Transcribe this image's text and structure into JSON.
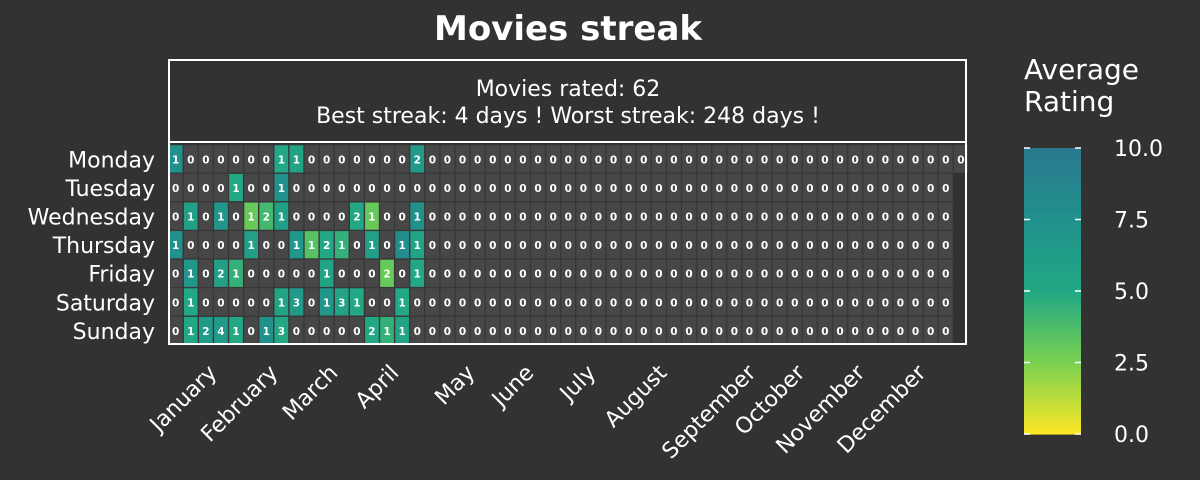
{
  "chart_data": {
    "type": "heatmap",
    "title": "Movies streak",
    "subtitle_lines": [
      "Movies rated: 62",
      "Best streak: 4 days ! Worst streak: 248 days !"
    ],
    "rows": [
      "Monday",
      "Tuesday",
      "Wednesday",
      "Thursday",
      "Friday",
      "Saturday",
      "Sunday"
    ],
    "x_tick_labels": [
      "January",
      "February",
      "March",
      "April",
      "May",
      "June",
      "July",
      "August",
      "September",
      "October",
      "November",
      "December"
    ],
    "weeks_per_row": [
      53,
      52,
      52,
      52,
      52,
      52,
      52
    ],
    "counts": [
      [
        1,
        0,
        0,
        0,
        0,
        0,
        0,
        1,
        1,
        0,
        0,
        0,
        0,
        0,
        0,
        0,
        2,
        0,
        0,
        0,
        0,
        0,
        0,
        0,
        0,
        0,
        0,
        0,
        0,
        0,
        0,
        0,
        0,
        0,
        0,
        0,
        0,
        0,
        0,
        0,
        0,
        0,
        0,
        0,
        0,
        0,
        0,
        0,
        0,
        0,
        0,
        0,
        0
      ],
      [
        0,
        0,
        0,
        0,
        1,
        0,
        0,
        1,
        0,
        0,
        0,
        0,
        0,
        0,
        0,
        0,
        0,
        0,
        0,
        0,
        0,
        0,
        0,
        0,
        0,
        0,
        0,
        0,
        0,
        0,
        0,
        0,
        0,
        0,
        0,
        0,
        0,
        0,
        0,
        0,
        0,
        0,
        0,
        0,
        0,
        0,
        0,
        0,
        0,
        0,
        0,
        0
      ],
      [
        0,
        1,
        0,
        1,
        0,
        1,
        2,
        1,
        0,
        0,
        0,
        0,
        2,
        1,
        0,
        0,
        1,
        0,
        0,
        0,
        0,
        0,
        0,
        0,
        0,
        0,
        0,
        0,
        0,
        0,
        0,
        0,
        0,
        0,
        0,
        0,
        0,
        0,
        0,
        0,
        0,
        0,
        0,
        0,
        0,
        0,
        0,
        0,
        0,
        0,
        0,
        0
      ],
      [
        1,
        0,
        0,
        0,
        0,
        1,
        0,
        0,
        1,
        1,
        2,
        1,
        0,
        1,
        0,
        1,
        1,
        0,
        0,
        0,
        0,
        0,
        0,
        0,
        0,
        0,
        0,
        0,
        0,
        0,
        0,
        0,
        0,
        0,
        0,
        0,
        0,
        0,
        0,
        0,
        0,
        0,
        0,
        0,
        0,
        0,
        0,
        0,
        0,
        0,
        0,
        0
      ],
      [
        0,
        1,
        0,
        2,
        1,
        0,
        0,
        0,
        0,
        0,
        1,
        0,
        0,
        0,
        2,
        0,
        1,
        0,
        0,
        0,
        0,
        0,
        0,
        0,
        0,
        0,
        0,
        0,
        0,
        0,
        0,
        0,
        0,
        0,
        0,
        0,
        0,
        0,
        0,
        0,
        0,
        0,
        0,
        0,
        0,
        0,
        0,
        0,
        0,
        0,
        0,
        0
      ],
      [
        0,
        1,
        0,
        0,
        0,
        0,
        0,
        1,
        3,
        0,
        1,
        3,
        1,
        0,
        0,
        1,
        0,
        0,
        0,
        0,
        0,
        0,
        0,
        0,
        0,
        0,
        0,
        0,
        0,
        0,
        0,
        0,
        0,
        0,
        0,
        0,
        0,
        0,
        0,
        0,
        0,
        0,
        0,
        0,
        0,
        0,
        0,
        0,
        0,
        0,
        0,
        0
      ],
      [
        0,
        1,
        2,
        4,
        1,
        0,
        1,
        3,
        0,
        0,
        0,
        0,
        0,
        2,
        1,
        1,
        0,
        0,
        0,
        0,
        0,
        0,
        0,
        0,
        0,
        0,
        0,
        0,
        0,
        0,
        0,
        0,
        0,
        0,
        0,
        0,
        0,
        0,
        0,
        0,
        0,
        0,
        0,
        0,
        0,
        0,
        0,
        0,
        0,
        0,
        0,
        0
      ]
    ],
    "ratings": [
      [
        7.5,
        null,
        null,
        null,
        null,
        null,
        null,
        5.0,
        5.5,
        null,
        null,
        null,
        null,
        null,
        null,
        null,
        6.5,
        null,
        null,
        null,
        null,
        null,
        null,
        null,
        null,
        null,
        null,
        null,
        null,
        null,
        null,
        null,
        null,
        null,
        null,
        null,
        null,
        null,
        null,
        null,
        null,
        null,
        null,
        null,
        null,
        null,
        null,
        null,
        null,
        null,
        null,
        null,
        null
      ],
      [
        null,
        null,
        null,
        null,
        5.0,
        null,
        null,
        7.5,
        null,
        null,
        null,
        null,
        null,
        null,
        null,
        null,
        null,
        null,
        null,
        null,
        null,
        null,
        null,
        null,
        null,
        null,
        null,
        null,
        null,
        null,
        null,
        null,
        null,
        null,
        null,
        null,
        null,
        null,
        null,
        null,
        null,
        null,
        null,
        null,
        null,
        null,
        null,
        null,
        null,
        null,
        null,
        null
      ],
      [
        null,
        6.0,
        null,
        7.0,
        null,
        3.0,
        4.0,
        6.0,
        null,
        null,
        null,
        null,
        5.0,
        3.0,
        null,
        null,
        7.5,
        null,
        null,
        null,
        null,
        null,
        null,
        null,
        null,
        null,
        null,
        null,
        null,
        null,
        null,
        null,
        null,
        null,
        null,
        null,
        null,
        null,
        null,
        null,
        null,
        null,
        null,
        null,
        null,
        null,
        null,
        null,
        null,
        null,
        null,
        null
      ],
      [
        7.5,
        null,
        null,
        null,
        null,
        6.0,
        null,
        null,
        7.0,
        3.5,
        5.0,
        4.5,
        null,
        6.0,
        null,
        8.0,
        5.5,
        null,
        null,
        null,
        null,
        null,
        null,
        null,
        null,
        null,
        null,
        null,
        null,
        null,
        null,
        null,
        null,
        null,
        null,
        null,
        null,
        null,
        null,
        null,
        null,
        null,
        null,
        null,
        null,
        null,
        null,
        null,
        null,
        null,
        null,
        null
      ],
      [
        null,
        7.0,
        null,
        6.0,
        4.5,
        null,
        null,
        null,
        null,
        null,
        5.5,
        null,
        null,
        null,
        3.0,
        null,
        5.0,
        null,
        null,
        null,
        null,
        null,
        null,
        null,
        null,
        null,
        null,
        null,
        null,
        null,
        null,
        null,
        null,
        null,
        null,
        null,
        null,
        null,
        null,
        null,
        null,
        null,
        null,
        null,
        null,
        null,
        null,
        null,
        null,
        null,
        null,
        null
      ],
      [
        null,
        5.0,
        null,
        null,
        null,
        null,
        null,
        5.5,
        6.5,
        null,
        7.0,
        5.5,
        5.0,
        null,
        null,
        5.0,
        null,
        null,
        null,
        null,
        null,
        null,
        null,
        null,
        null,
        null,
        null,
        null,
        null,
        null,
        null,
        null,
        null,
        null,
        null,
        null,
        null,
        null,
        null,
        null,
        null,
        null,
        null,
        null,
        null,
        null,
        null,
        null,
        null,
        null,
        null,
        null
      ],
      [
        null,
        5.0,
        6.5,
        6.5,
        5.0,
        null,
        7.5,
        5.0,
        null,
        null,
        null,
        null,
        null,
        5.0,
        4.5,
        5.5,
        null,
        null,
        null,
        null,
        null,
        null,
        null,
        null,
        null,
        null,
        null,
        null,
        null,
        null,
        null,
        null,
        null,
        null,
        null,
        null,
        null,
        null,
        null,
        null,
        null,
        null,
        null,
        null,
        null,
        null,
        null,
        null,
        null,
        null,
        null,
        null
      ]
    ],
    "colorbar": {
      "label": "Average Rating",
      "label_lines": [
        "Average",
        "Rating"
      ],
      "range": [
        0.0,
        10.0
      ],
      "ticks": [
        "0.0",
        "2.5",
        "5.0",
        "7.5",
        "10.0"
      ],
      "tick_values": [
        0,
        2.5,
        5,
        7.5,
        10
      ],
      "colormap": "viridis_r"
    },
    "colors": {
      "background": "#323232",
      "empty_cell": "#474747",
      "frame": "#ffffff"
    }
  }
}
